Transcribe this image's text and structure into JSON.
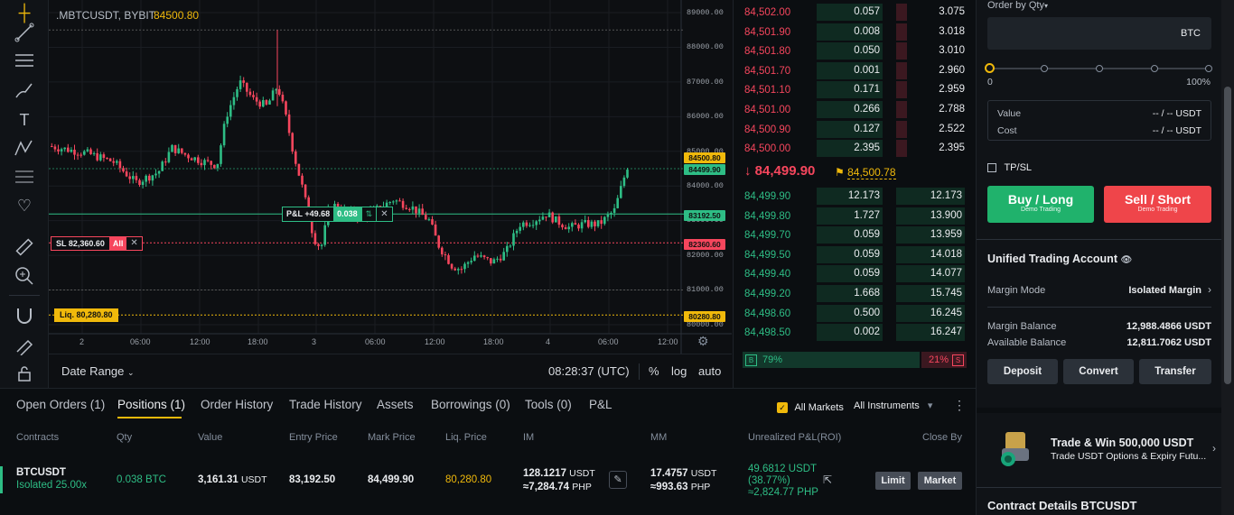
{
  "chart": {
    "symbol": ".MBTCUSDT, BYBIT",
    "price": "84500.80",
    "y_labels": [
      "89000.00",
      "88000.00",
      "87000.00",
      "86000.00",
      "85000.00",
      "84000.00",
      "83000.00",
      "82000.00",
      "81000.00",
      "80000.00"
    ],
    "tags": {
      "p1": "84500.80",
      "p2": "84499.90",
      "entry": "83192.50",
      "sl": "82360.60",
      "liq": "80280.80"
    },
    "x_labels": [
      "2",
      "06:00",
      "12:00",
      "18:00",
      "3",
      "06:00",
      "12:00",
      "18:00",
      "4",
      "06:00",
      "12:00"
    ],
    "pnl_label": "P&L +49.68",
    "pnl_qty": "0.038",
    "sl_label": "SL 82,360.60",
    "sl_all": "All",
    "liq_label": "Liq. 80,280.80",
    "date_range": "Date Range",
    "time": "08:28:37 (UTC)",
    "pct": "%",
    "log": "log",
    "auto": "auto",
    "colors": {
      "up": "#2ebd85",
      "down": "#f6465d",
      "accent": "#f0b90b"
    }
  },
  "orderbook": {
    "asks": [
      {
        "price": "84,502.00",
        "qty": "0.057",
        "total": "3.075"
      },
      {
        "price": "84,501.90",
        "qty": "0.008",
        "total": "3.018"
      },
      {
        "price": "84,501.80",
        "qty": "0.050",
        "total": "3.010"
      },
      {
        "price": "84,501.70",
        "qty": "0.001",
        "total": "2.960"
      },
      {
        "price": "84,501.10",
        "qty": "0.171",
        "total": "2.959"
      },
      {
        "price": "84,501.00",
        "qty": "0.266",
        "total": "2.788"
      },
      {
        "price": "84,500.90",
        "qty": "0.127",
        "total": "2.522"
      },
      {
        "price": "84,500.00",
        "qty": "2.395",
        "total": "2.395"
      }
    ],
    "last_price": "84,499.90",
    "mark_price": "84,500.78",
    "bids": [
      {
        "price": "84,499.90",
        "qty": "12.173",
        "total": "12.173"
      },
      {
        "price": "84,499.80",
        "qty": "1.727",
        "total": "13.900"
      },
      {
        "price": "84,499.70",
        "qty": "0.059",
        "total": "13.959"
      },
      {
        "price": "84,499.50",
        "qty": "0.059",
        "total": "14.018"
      },
      {
        "price": "84,499.40",
        "qty": "0.059",
        "total": "14.077"
      },
      {
        "price": "84,499.20",
        "qty": "1.668",
        "total": "15.745"
      },
      {
        "price": "84,498.60",
        "qty": "0.500",
        "total": "16.245"
      },
      {
        "price": "84,498.50",
        "qty": "0.002",
        "total": "16.247"
      }
    ],
    "buy_letter": "B",
    "buy_pct": "79%",
    "sell_pct": "21%",
    "sell_letter": "S",
    "buy_ratio": 0.79
  },
  "order": {
    "order_by": "Order by Qty",
    "qty_unit": "BTC",
    "slider_min": "0",
    "slider_max": "100%",
    "value_label": "Value",
    "value_val": "-- / -- USDT",
    "cost_label": "Cost",
    "cost_val": "-- / -- USDT",
    "tpsl": "TP/SL",
    "buy_label": "Buy / Long",
    "buy_sub": "Demo Trading",
    "sell_label": "Sell / Short",
    "sell_sub": "Demo Trading"
  },
  "account": {
    "title": "Unified Trading Account",
    "margin_mode_label": "Margin Mode",
    "margin_mode_value": "Isolated Margin",
    "margin_balance_label": "Margin Balance",
    "margin_balance_value": "12,988.4866 USDT",
    "available_label": "Available Balance",
    "available_value": "12,811.7062 USDT",
    "deposit": "Deposit",
    "convert": "Convert",
    "transfer": "Transfer"
  },
  "promo": {
    "title": "Trade & Win 500,000 USDT",
    "subtitle": "Trade USDT Options & Expiry Futu..."
  },
  "contract_details": "Contract Details BTCUSDT",
  "bottom": {
    "tabs": [
      "Open Orders (1)",
      "Positions (1)",
      "Order History",
      "Trade History",
      "Assets",
      "Borrowings (0)",
      "Tools (0)",
      "P&L"
    ],
    "all_markets": "All Markets",
    "all_instruments": "All Instruments",
    "headers": [
      "Contracts",
      "Qty",
      "Value",
      "Entry Price",
      "Mark Price",
      "Liq. Price",
      "IM",
      "MM",
      "Unrealized P&L(ROI)",
      "Close By"
    ],
    "row": {
      "contract": "BTCUSDT",
      "margin": "Isolated 25.00x",
      "qty": "0.038 BTC",
      "value": "3,161.31",
      "value_unit": "USDT",
      "entry": "83,192.50",
      "mark": "84,499.90",
      "liq": "80,280.80",
      "im": "128.1217",
      "im_unit": "USDT",
      "im_php": "≈7,284.74",
      "im_php_unit": "PHP",
      "mm": "17.4757",
      "mm_unit": "USDT",
      "mm_php": "≈993.63",
      "mm_php_unit": "PHP",
      "pnl": "49.6812 USDT",
      "roi": "(38.77%)",
      "pnl_php": "≈2,824.77 PHP",
      "limit": "Limit",
      "market": "Market"
    }
  }
}
